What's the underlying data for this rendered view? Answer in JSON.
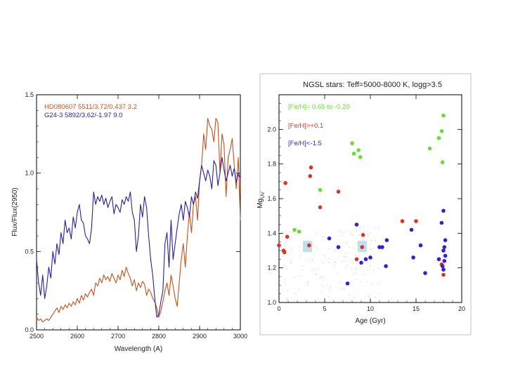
{
  "chart_data": [
    {
      "type": "line",
      "title": "",
      "xlabel": "Wavelength (A)",
      "ylabel": "Flux/Flux(2950)",
      "xlim": [
        2500,
        3000
      ],
      "ylim": [
        0,
        1.5
      ],
      "xticks": [
        "2500",
        "2600",
        "2700",
        "2800",
        "2900",
        "3000"
      ],
      "yticks": [
        "0.0",
        "0.5",
        "1.0",
        "1.5"
      ],
      "legend": "top-left",
      "series": [
        {
          "name": "HD080607 5511/3.72/0.437 3.2",
          "color": "#c8501a",
          "x": [
            2500,
            2505,
            2510,
            2515,
            2520,
            2525,
            2530,
            2535,
            2540,
            2545,
            2550,
            2555,
            2560,
            2565,
            2570,
            2575,
            2580,
            2585,
            2590,
            2595,
            2600,
            2605,
            2610,
            2615,
            2620,
            2625,
            2630,
            2635,
            2640,
            2645,
            2650,
            2655,
            2660,
            2665,
            2670,
            2675,
            2680,
            2685,
            2690,
            2695,
            2700,
            2705,
            2710,
            2715,
            2720,
            2725,
            2730,
            2735,
            2740,
            2745,
            2750,
            2755,
            2760,
            2765,
            2770,
            2775,
            2780,
            2785,
            2790,
            2795,
            2800,
            2805,
            2810,
            2815,
            2820,
            2825,
            2830,
            2835,
            2840,
            2845,
            2850,
            2855,
            2860,
            2865,
            2870,
            2875,
            2880,
            2885,
            2890,
            2895,
            2900,
            2905,
            2910,
            2915,
            2920,
            2925,
            2930,
            2935,
            2940,
            2945,
            2950,
            2955,
            2960,
            2965,
            2970,
            2975,
            2980,
            2985,
            2990,
            2995,
            3000
          ],
          "y": [
            0.08,
            0.06,
            0.07,
            0.05,
            0.06,
            0.07,
            0.06,
            0.08,
            0.1,
            0.12,
            0.14,
            0.11,
            0.15,
            0.13,
            0.16,
            0.14,
            0.17,
            0.15,
            0.18,
            0.16,
            0.2,
            0.17,
            0.22,
            0.19,
            0.23,
            0.21,
            0.24,
            0.26,
            0.22,
            0.3,
            0.28,
            0.33,
            0.3,
            0.35,
            0.32,
            0.34,
            0.31,
            0.36,
            0.33,
            0.3,
            0.35,
            0.32,
            0.38,
            0.34,
            0.4,
            0.36,
            0.33,
            0.28,
            0.32,
            0.25,
            0.3,
            0.27,
            0.31,
            0.29,
            0.22,
            0.26,
            0.24,
            0.2,
            0.18,
            0.14,
            0.08,
            0.12,
            0.18,
            0.25,
            0.3,
            0.22,
            0.35,
            0.28,
            0.2,
            0.15,
            0.3,
            0.45,
            0.55,
            0.4,
            0.6,
            0.75,
            0.62,
            0.8,
            0.85,
            0.7,
            0.95,
            1.05,
            1.25,
            1.15,
            1.35,
            1.3,
            1.28,
            1.2,
            1.35,
            1.32,
            1.0,
            1.25,
            1.18,
            0.85,
            1.1,
            1.15,
            1.22,
            1.05,
            0.9,
            1.1,
            0.7
          ]
        },
        {
          "name": "G24-3 5892/3.62/-1.97 9.0",
          "color": "#2a1f9c",
          "x": [
            2500,
            2505,
            2510,
            2515,
            2520,
            2525,
            2530,
            2535,
            2540,
            2545,
            2550,
            2555,
            2560,
            2565,
            2570,
            2575,
            2580,
            2585,
            2590,
            2595,
            2600,
            2605,
            2610,
            2615,
            2620,
            2625,
            2630,
            2635,
            2640,
            2645,
            2650,
            2655,
            2660,
            2665,
            2670,
            2675,
            2680,
            2685,
            2690,
            2695,
            2700,
            2705,
            2710,
            2715,
            2720,
            2725,
            2730,
            2735,
            2740,
            2745,
            2750,
            2755,
            2760,
            2765,
            2770,
            2775,
            2780,
            2785,
            2790,
            2795,
            2800,
            2805,
            2810,
            2815,
            2820,
            2825,
            2830,
            2835,
            2840,
            2845,
            2850,
            2855,
            2860,
            2865,
            2870,
            2875,
            2880,
            2885,
            2890,
            2895,
            2900,
            2905,
            2910,
            2915,
            2920,
            2925,
            2930,
            2935,
            2940,
            2945,
            2950,
            2955,
            2960,
            2965,
            2970,
            2975,
            2980,
            2985,
            2990,
            2995,
            3000
          ],
          "y": [
            0.45,
            0.3,
            0.22,
            0.35,
            0.2,
            0.28,
            0.4,
            0.33,
            0.5,
            0.42,
            0.55,
            0.48,
            0.62,
            0.55,
            0.7,
            0.62,
            0.65,
            0.58,
            0.72,
            0.65,
            0.75,
            0.8,
            0.7,
            0.68,
            0.6,
            0.58,
            0.55,
            0.65,
            0.88,
            0.8,
            0.85,
            0.82,
            0.86,
            0.8,
            0.84,
            0.78,
            0.82,
            0.85,
            0.74,
            0.8,
            0.78,
            0.75,
            0.83,
            0.8,
            0.85,
            0.82,
            0.88,
            0.75,
            0.7,
            0.5,
            0.6,
            0.8,
            0.72,
            0.85,
            0.78,
            0.6,
            0.45,
            0.35,
            0.2,
            0.08,
            0.1,
            0.18,
            0.25,
            0.55,
            0.62,
            0.4,
            0.7,
            0.45,
            0.55,
            0.65,
            0.74,
            0.8,
            0.7,
            0.82,
            0.78,
            0.72,
            0.85,
            0.8,
            0.88,
            0.84,
            0.95,
            1.05,
            1.0,
            0.95,
            1.02,
            0.98,
            0.9,
            1.08,
            1.05,
            0.92,
            1.0,
            1.1,
            1.02,
            0.95,
            1.0,
            1.05,
            0.98,
            1.03,
            0.94,
            1.0,
            0.97
          ]
        }
      ]
    },
    {
      "type": "scatter",
      "title": "NGSL stars: Teff=5000-8000 K, logg>3.5",
      "xlabel": "Age (Gyr)",
      "ylabel": "Mg_UV",
      "ylabel_main": "Mg",
      "ylabel_sub": "UV",
      "xlim": [
        0,
        20
      ],
      "ylim": [
        1.0,
        2.2
      ],
      "xticks": [
        "0",
        "5",
        "10",
        "15",
        "20"
      ],
      "yticks": [
        "1.0",
        "1.2",
        "1.4",
        "1.6",
        "1.8",
        "2.0"
      ],
      "legend": "top-left",
      "series": [
        {
          "name": "[Fe/H]= 0.65 to -0.20",
          "color": "#66dd33",
          "x": [
            1.7,
            2.2,
            4.5,
            8.0,
            8.2,
            8.7,
            8.9,
            16.5,
            17.5,
            17.8,
            18.0,
            17.9
          ],
          "y": [
            1.42,
            1.41,
            1.65,
            1.92,
            1.86,
            1.88,
            1.84,
            1.89,
            1.95,
            1.99,
            2.08,
            1.81
          ]
        },
        {
          "name": "[Fe/H]>+0.1",
          "color": "#dd3322",
          "x": [
            0.0,
            0.5,
            0.6,
            0.7,
            0.9,
            3.3,
            3.5,
            3.4,
            4.5,
            6.5,
            8.5,
            9.1,
            9.2,
            13.5,
            15.0,
            17.5,
            17.8,
            18.0
          ],
          "y": [
            1.33,
            1.3,
            1.29,
            1.69,
            1.38,
            1.33,
            1.78,
            1.73,
            1.55,
            1.64,
            1.25,
            1.32,
            1.39,
            1.47,
            1.47,
            1.25,
            1.22,
            1.16
          ]
        },
        {
          "name": "[Fe/H]<-1.5",
          "color": "#3a1ecc",
          "x": [
            5.5,
            6.5,
            7.5,
            8.5,
            9.0,
            9.5,
            10.0,
            11.0,
            11.3,
            11.7,
            11.8,
            14.5,
            14.7,
            15.5,
            16.0,
            17.5,
            17.8,
            18.0,
            18.1,
            18.0,
            18.2,
            18.1,
            17.9,
            18.0,
            18.2
          ],
          "y": [
            1.37,
            1.32,
            1.11,
            1.45,
            1.23,
            1.25,
            1.26,
            1.32,
            1.32,
            1.21,
            1.36,
            1.42,
            1.26,
            1.33,
            1.17,
            1.25,
            1.46,
            1.53,
            1.32,
            1.3,
            1.27,
            1.24,
            1.21,
            1.19,
            1.36
          ]
        }
      ]
    }
  ]
}
